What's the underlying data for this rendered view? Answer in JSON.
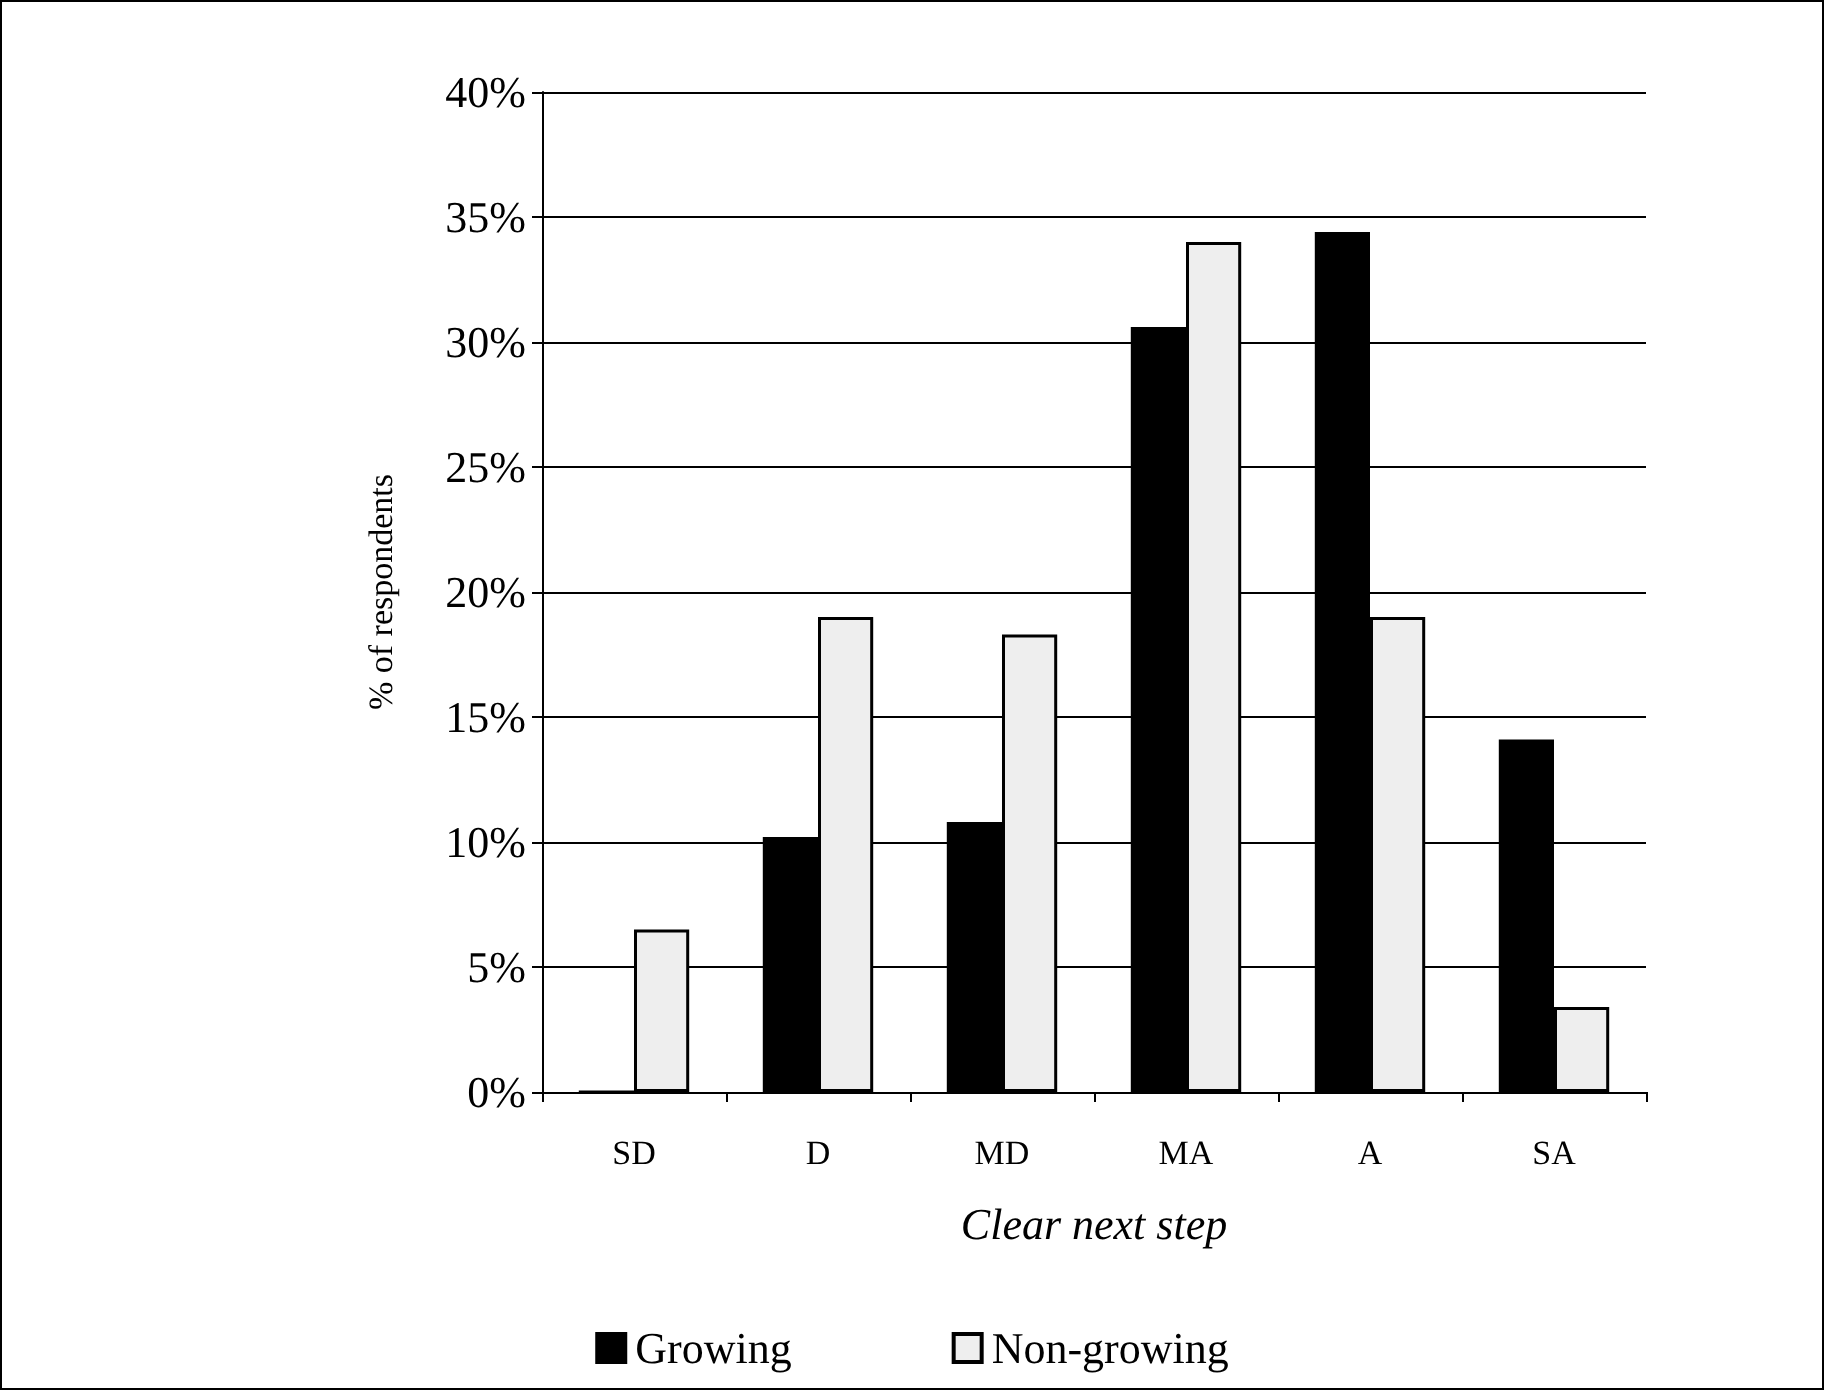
{
  "chart_data": {
    "type": "bar",
    "xlabel": "Clear next step",
    "ylabel": "% of respondents",
    "categories": [
      "SD",
      "D",
      "MD",
      "MA",
      "A",
      "SA"
    ],
    "series": [
      {
        "name": "Growing",
        "color": "#000000",
        "values": [
          0,
          10.2,
          10.8,
          30.6,
          34.4,
          14.1
        ]
      },
      {
        "name": "Non-growing",
        "color": "#eeeeee",
        "values": [
          6.5,
          19,
          18.3,
          34,
          19,
          3.4
        ]
      }
    ],
    "ylim": [
      0,
      40
    ],
    "yticks": [
      {
        "value": 0,
        "label": "0%"
      },
      {
        "value": 5,
        "label": "5%"
      },
      {
        "value": 10,
        "label": "10%"
      },
      {
        "value": 15,
        "label": "15%"
      },
      {
        "value": 20,
        "label": "20%"
      },
      {
        "value": 25,
        "label": "25%"
      },
      {
        "value": 30,
        "label": "30%"
      },
      {
        "value": 35,
        "label": "35%"
      },
      {
        "value": 40,
        "label": "40%"
      }
    ],
    "grid": "y",
    "legend": "bottom"
  }
}
